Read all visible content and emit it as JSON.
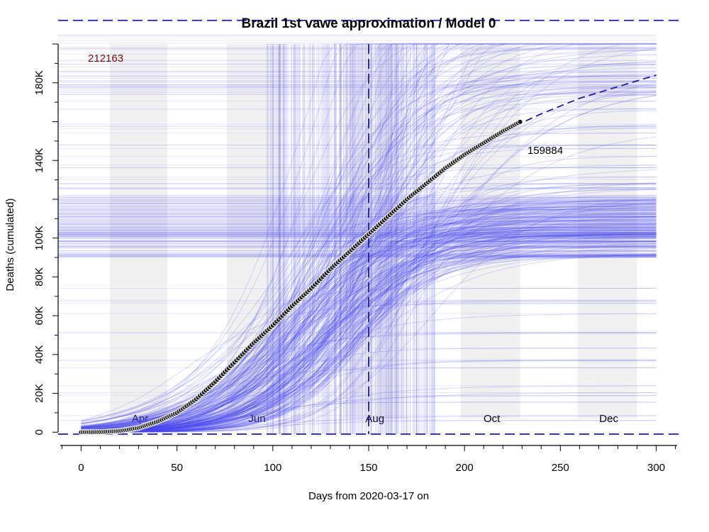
{
  "chart_data": {
    "type": "scatter",
    "title": "Brazil 1st vawe approximation / Model 0",
    "xlabel": "Days from 2020-03-17 on",
    "ylabel": "Deaths (cumulated)",
    "xlim": [
      -12,
      312
    ],
    "ylim": [
      -1000,
      200000
    ],
    "x_ticks": [
      0,
      50,
      100,
      150,
      200,
      250,
      300
    ],
    "y_ticks": [
      {
        "value": 0,
        "label": "0"
      },
      {
        "value": 20000,
        "label": "20K"
      },
      {
        "value": 40000,
        "label": "40K"
      },
      {
        "value": 60000,
        "label": "60K"
      },
      {
        "value": 80000,
        "label": "80K"
      },
      {
        "value": 100000,
        "label": "100K"
      },
      {
        "value": 140000,
        "label": "140K"
      },
      {
        "value": 180000,
        "label": "180K"
      }
    ],
    "month_bands": [
      {
        "label": "Apr",
        "start": 15,
        "end": 45
      },
      {
        "label": "Jun",
        "start": 76,
        "end": 106
      },
      {
        "label": "Aug",
        "start": 137,
        "end": 168
      },
      {
        "label": "Oct",
        "start": 198,
        "end": 229
      },
      {
        "label": "Dec",
        "start": 259,
        "end": 290
      }
    ],
    "asymptote": {
      "value": 212163,
      "label": "212163"
    },
    "peak_day": 150,
    "observed": {
      "x": [
        0,
        10,
        20,
        30,
        40,
        50,
        60,
        70,
        80,
        90,
        100,
        110,
        120,
        130,
        140,
        150,
        160,
        170,
        180,
        190,
        200,
        210,
        220,
        229
      ],
      "y": [
        0,
        60,
        600,
        2200,
        5500,
        10000,
        17000,
        26000,
        36000,
        46000,
        55000,
        65000,
        74000,
        84000,
        93000,
        102000,
        111000,
        120000,
        128000,
        136000,
        143000,
        149000,
        155000,
        159884
      ],
      "last_value": 159884
    },
    "fit": {
      "x": [
        0,
        20,
        40,
        60,
        80,
        100,
        120,
        140,
        160,
        180,
        200,
        220,
        240,
        260,
        280,
        300
      ],
      "y": [
        0,
        600,
        5000,
        17000,
        36000,
        55000,
        74000,
        93000,
        111000,
        128000,
        143000,
        155000,
        164000,
        172000,
        178000,
        184000
      ]
    },
    "simulation": {
      "count": 260,
      "color": "#4a4af0",
      "seed": 12345
    },
    "colors": {
      "observed_fill": "#1a1a1a",
      "fit": "#1a1aa8",
      "band": "#f0f0f0",
      "axes": "#000000"
    }
  }
}
